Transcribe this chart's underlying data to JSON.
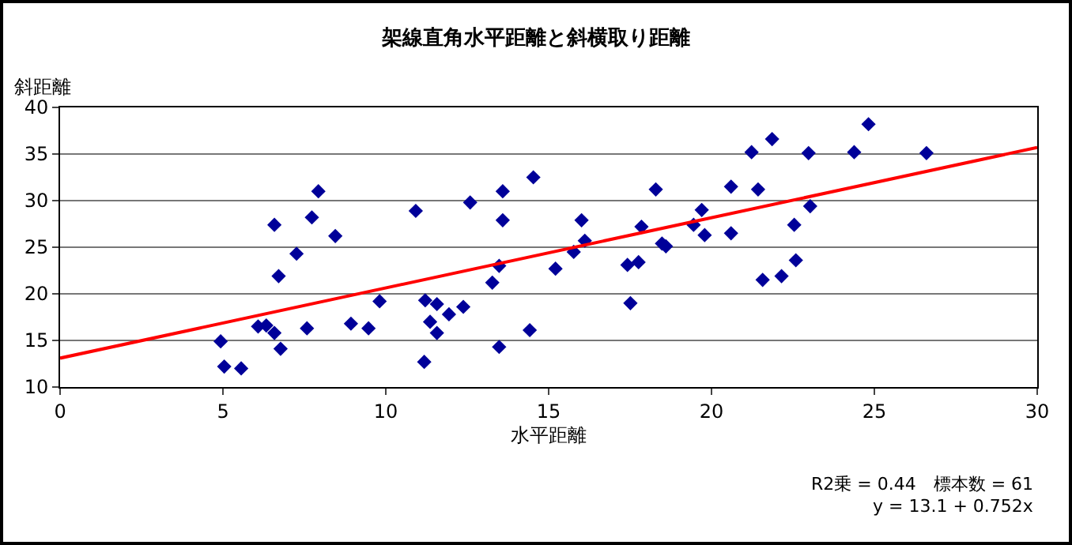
{
  "chart_data": {
    "type": "scatter",
    "title": "架線直角水平距離と斜横取り距離",
    "xlabel": "水平距離",
    "ylabel": "斜距離",
    "xlim": [
      0,
      30
    ],
    "xticks": [
      0,
      5,
      10,
      15,
      20,
      25,
      30
    ],
    "ylim": [
      10,
      40
    ],
    "yticks": [
      10,
      15,
      20,
      25,
      30,
      35,
      40
    ],
    "grid": "y",
    "annotations": [
      "R2乗 = 0.44　標本数 = 61",
      "y = 13.1 + 0.752x"
    ],
    "series": [
      {
        "marker": "diamond",
        "color": "#000099",
        "x": [
          4.93,
          5.04,
          5.56,
          6.08,
          6.33,
          6.58,
          6.58,
          6.77,
          6.71,
          7.26,
          7.58,
          7.73,
          7.93,
          8.45,
          8.93,
          9.47,
          9.81,
          10.92,
          11.21,
          11.18,
          11.36,
          11.57,
          11.57,
          11.94,
          12.38,
          12.59,
          13.27,
          13.48,
          13.48,
          13.59,
          13.59,
          14.42,
          14.53,
          15.21,
          15.77,
          16.01,
          16.11,
          17.42,
          17.51,
          17.76,
          17.85,
          18.29,
          18.48,
          18.6,
          19.45,
          19.7,
          19.79,
          20.6,
          20.6,
          21.23,
          21.43,
          21.57,
          21.86,
          22.15,
          22.54,
          22.59,
          22.98,
          23.03,
          24.38,
          24.82,
          26.6
        ],
        "values": [
          14.9,
          12.2,
          12.0,
          16.5,
          16.6,
          27.4,
          15.8,
          14.1,
          21.9,
          24.3,
          16.3,
          28.2,
          31.0,
          26.2,
          16.8,
          16.3,
          19.2,
          28.9,
          19.3,
          12.7,
          17.0,
          18.9,
          15.8,
          17.8,
          18.6,
          29.8,
          21.2,
          23.0,
          14.3,
          31.0,
          27.9,
          16.1,
          32.5,
          22.7,
          24.5,
          27.9,
          25.7,
          23.1,
          19.0,
          23.4,
          27.2,
          31.2,
          25.4,
          25.1,
          27.4,
          29.0,
          26.3,
          31.5,
          26.5,
          35.2,
          31.2,
          21.5,
          36.6,
          21.9,
          27.4,
          23.6,
          35.1,
          29.4,
          35.2,
          38.2,
          35.1
        ]
      },
      {
        "type": "line",
        "marker": "none",
        "color": "#ff0000",
        "x": [
          0,
          30
        ],
        "values": [
          13.1,
          35.7
        ]
      }
    ]
  }
}
